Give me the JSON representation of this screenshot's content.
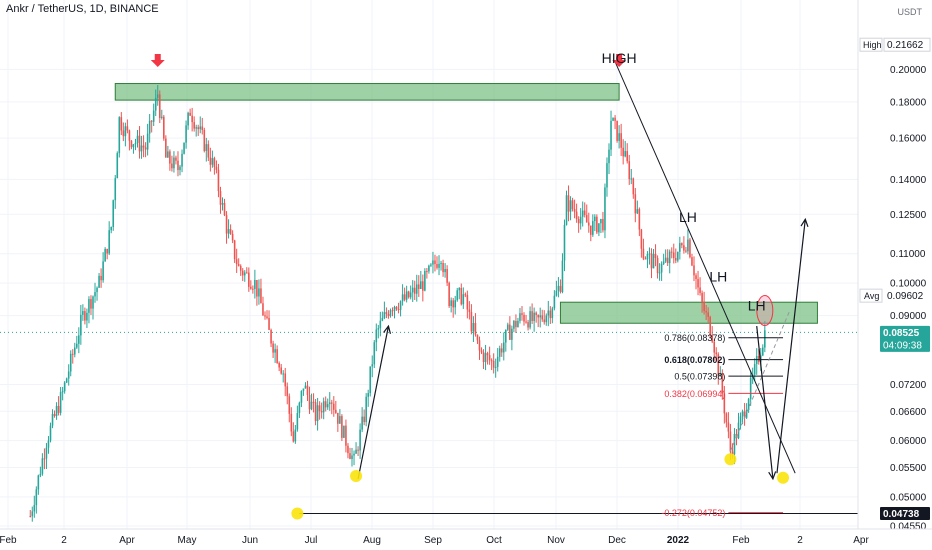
{
  "header": {
    "title": "Ankr / TetherUS, 1D, BINANCE",
    "unit": "USDT"
  },
  "chart_data": {
    "type": "candlestick",
    "title": "Ankr / TetherUS, 1D, BINANCE",
    "y_unit": "USDT",
    "y_scale": "log",
    "ylim": [
      0.0455,
      0.225
    ],
    "y_ticks": [
      "0.20000",
      "0.18000",
      "0.16000",
      "0.14000",
      "0.12500",
      "0.11000",
      "0.10000",
      "0.09000",
      "0.07200",
      "0.06600",
      "0.06000",
      "0.05500",
      "0.05000",
      "0.04550"
    ],
    "x_ticks": [
      "Feb",
      "2",
      "Apr",
      "May",
      "Jun",
      "Jul",
      "Aug",
      "Sep",
      "Oct",
      "Nov",
      "Dec",
      "2022",
      "Feb",
      "2",
      "Apr"
    ],
    "price_path": [
      [
        "2021-02-12",
        0.047
      ],
      [
        "2021-02-20",
        0.06
      ],
      [
        "2021-02-28",
        0.07
      ],
      [
        "2021-03-10",
        0.09
      ],
      [
        "2021-03-18",
        0.1
      ],
      [
        "2021-03-24",
        0.12
      ],
      [
        "2021-03-28",
        0.17
      ],
      [
        "2021-04-02",
        0.16
      ],
      [
        "2021-04-10",
        0.155
      ],
      [
        "2021-04-16",
        0.185
      ],
      [
        "2021-04-20",
        0.15
      ],
      [
        "2021-04-26",
        0.145
      ],
      [
        "2021-05-02",
        0.175
      ],
      [
        "2021-05-08",
        0.16
      ],
      [
        "2021-05-14",
        0.145
      ],
      [
        "2021-05-20",
        0.12
      ],
      [
        "2021-05-26",
        0.105
      ],
      [
        "2021-06-03",
        0.1
      ],
      [
        "2021-06-10",
        0.085
      ],
      [
        "2021-06-17",
        0.075
      ],
      [
        "2021-06-22",
        0.06
      ],
      [
        "2021-06-27",
        0.072
      ],
      [
        "2021-07-03",
        0.065
      ],
      [
        "2021-07-10",
        0.07
      ],
      [
        "2021-07-18",
        0.06
      ],
      [
        "2021-07-22",
        0.056
      ],
      [
        "2021-07-27",
        0.065
      ],
      [
        "2021-08-02",
        0.085
      ],
      [
        "2021-08-09",
        0.093
      ],
      [
        "2021-08-17",
        0.095
      ],
      [
        "2021-08-25",
        0.1
      ],
      [
        "2021-09-03",
        0.11
      ],
      [
        "2021-09-07",
        0.095
      ],
      [
        "2021-09-14",
        0.096
      ],
      [
        "2021-09-22",
        0.08
      ],
      [
        "2021-09-29",
        0.077
      ],
      [
        "2021-10-06",
        0.085
      ],
      [
        "2021-10-13",
        0.09
      ],
      [
        "2021-10-20",
        0.088
      ],
      [
        "2021-10-27",
        0.092
      ],
      [
        "2021-11-01",
        0.1
      ],
      [
        "2021-11-04",
        0.13
      ],
      [
        "2021-11-10",
        0.125
      ],
      [
        "2021-11-16",
        0.12
      ],
      [
        "2021-11-22",
        0.122
      ],
      [
        "2021-11-26",
        0.17
      ],
      [
        "2021-11-30",
        0.16
      ],
      [
        "2021-12-06",
        0.14
      ],
      [
        "2021-12-12",
        0.11
      ],
      [
        "2021-12-20",
        0.105
      ],
      [
        "2021-12-28",
        0.11
      ],
      [
        "2022-01-03",
        0.115
      ],
      [
        "2022-01-09",
        0.095
      ],
      [
        "2022-01-15",
        0.085
      ],
      [
        "2022-01-20",
        0.07
      ],
      [
        "2022-01-24",
        0.058
      ],
      [
        "2022-01-30",
        0.065
      ],
      [
        "2022-02-05",
        0.075
      ],
      [
        "2022-02-10",
        0.08525
      ]
    ],
    "high_level": {
      "label": "High",
      "value": "0.21662"
    },
    "avg_level": {
      "label": "Avg",
      "value": "0.09602"
    },
    "last_price": {
      "value": "0.08525",
      "countdown": "04:09:38"
    },
    "target_level": {
      "value": "0.04738"
    },
    "resistance_zones": [
      {
        "from": "2021-03-26",
        "to": "2021-11-30",
        "low": 0.181,
        "high": 0.191
      },
      {
        "from": "2021-11-01",
        "to": "2022-03-08",
        "low": 0.0878,
        "high": 0.094
      }
    ],
    "fibonacci_levels": [
      {
        "label": "0.786(0.08378)",
        "value": 0.08378,
        "color": "#131722"
      },
      {
        "label": "0.618(0.07802)",
        "value": 0.07802,
        "color": "#131722"
      },
      {
        "label": "0.5(0.07398)",
        "value": 0.07398,
        "color": "#131722"
      },
      {
        "label": "0.382(0.06994)",
        "value": 0.06994,
        "color": "#f23645"
      },
      {
        "label": "-0.272(0.04752)",
        "value": 0.04752,
        "color": "#f23645"
      }
    ],
    "annotations": [
      {
        "text": "HIGH",
        "x": "2021-11-30",
        "y": 0.204
      },
      {
        "text": "LH",
        "x": "2022-01-03",
        "y": 0.122
      },
      {
        "text": "LH",
        "x": "2022-01-18",
        "y": 0.1005
      },
      {
        "text": "LH",
        "x": "2022-02-06",
        "y": 0.0915
      }
    ],
    "colors": {
      "up": "#26a69a",
      "down": "#ef5350",
      "zone": "#86c58f",
      "highlight": "#f9e30b",
      "price_tag": "#26a69a"
    }
  }
}
